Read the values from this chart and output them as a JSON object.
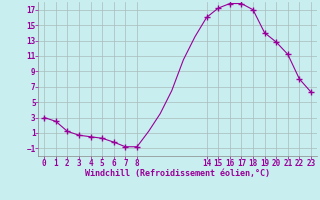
{
  "all_hours": [
    0,
    1,
    2,
    3,
    4,
    5,
    6,
    7,
    8,
    9,
    10,
    11,
    12,
    13,
    14,
    15,
    16,
    17,
    18,
    19,
    20,
    21,
    22,
    23
  ],
  "all_values": [
    3.0,
    2.5,
    1.2,
    0.7,
    0.5,
    0.3,
    -0.2,
    -0.8,
    -0.8,
    1.2,
    3.5,
    6.5,
    10.5,
    13.5,
    16.0,
    17.2,
    17.8,
    17.8,
    17.0,
    14.0,
    12.8,
    11.2,
    8.0,
    6.3
  ],
  "marker_hours": [
    0,
    1,
    2,
    3,
    4,
    5,
    6,
    7,
    8,
    14,
    15,
    16,
    17,
    18,
    19,
    20,
    21,
    22,
    23
  ],
  "marker_values": [
    3.0,
    2.5,
    1.2,
    0.7,
    0.5,
    0.3,
    -0.2,
    -0.8,
    -0.8,
    16.0,
    17.2,
    17.8,
    17.8,
    17.0,
    14.0,
    12.8,
    11.2,
    8.0,
    6.3
  ],
  "line_color": "#990099",
  "bg_color": "#c8eef0",
  "grid_color": "#aabbbb",
  "tick_color": "#990099",
  "xlabel": "Windchill (Refroidissement éolien,°C)",
  "ylim": [
    -2,
    18
  ],
  "xlim": [
    -0.5,
    23.5
  ],
  "yticks": [
    -1,
    1,
    3,
    5,
    7,
    9,
    11,
    13,
    15,
    17
  ],
  "shown_xticks": [
    0,
    1,
    2,
    3,
    4,
    5,
    6,
    7,
    8,
    14,
    15,
    16,
    17,
    18,
    19,
    20,
    21,
    22,
    23
  ]
}
